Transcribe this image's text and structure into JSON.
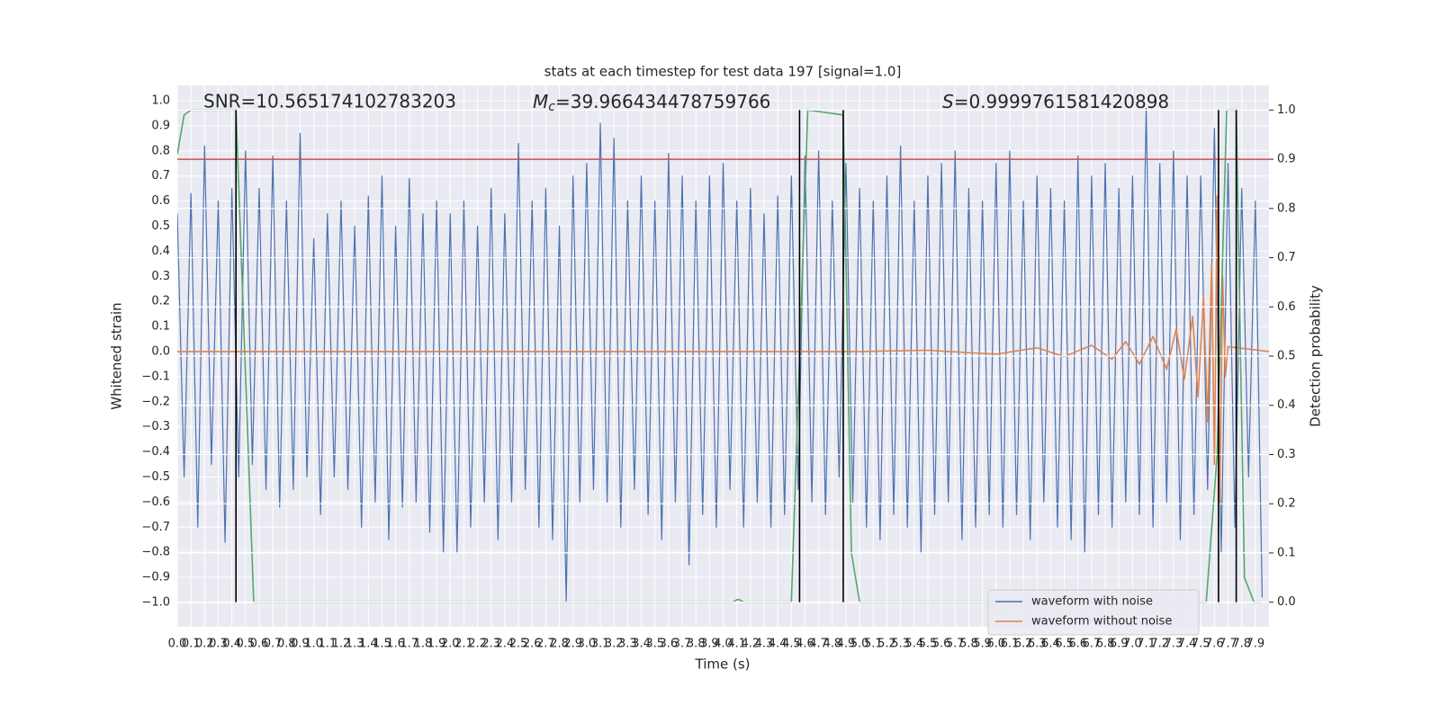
{
  "chart_data": {
    "type": "line",
    "title": "stats at each timestep for test data 197 [signal=1.0]",
    "x_label": "Time (s)",
    "y_label": "Whitened strain",
    "y2_label": "Detection probability",
    "annotations": {
      "snr": "SNR=10.565174102783203",
      "mc_symbol": "M",
      "mc_subscript": "c",
      "mc_text": "=39.966434478759766",
      "s_symbol": "S",
      "s_text": "=0.9999761581420898"
    },
    "xlim": [
      0,
      8
    ],
    "ylim": [
      -1.097,
      1.061
    ],
    "y2lim": [
      -0.05,
      1.05
    ],
    "grid": true,
    "legend": "lower right",
    "xticks": [
      {
        "value": 0,
        "label": "0.0"
      },
      0.1,
      0.2,
      0.3,
      0.4,
      0.5,
      0.6,
      0.7,
      0.8,
      0.9,
      {
        "value": 1,
        "label": "1.0"
      },
      1.1,
      1.2,
      1.3,
      1.4,
      1.5,
      1.6,
      1.7,
      1.8,
      1.9,
      {
        "value": 2,
        "label": "2.0"
      },
      2.1,
      2.2,
      2.3,
      2.4,
      2.5,
      2.6,
      2.7,
      2.8,
      2.9,
      {
        "value": 3,
        "label": "3.0"
      },
      3.1,
      3.2,
      3.3,
      3.4,
      3.5,
      3.6,
      3.7,
      3.8,
      3.9,
      {
        "value": 4,
        "label": "4.0"
      },
      4.1,
      4.2,
      4.3,
      4.4,
      4.5,
      4.6,
      4.7,
      4.8,
      4.9,
      {
        "value": 5,
        "label": "5.0"
      },
      5.1,
      5.2,
      5.3,
      5.4,
      5.5,
      5.6,
      5.7,
      5.8,
      5.9,
      {
        "value": 6,
        "label": "6.0"
      },
      6.1,
      6.2,
      6.3,
      6.4,
      6.5,
      6.6,
      6.7,
      6.8,
      6.9,
      {
        "value": 7,
        "label": "7.0"
      },
      7.1,
      7.2,
      7.3,
      7.4,
      7.5,
      7.6,
      7.7,
      7.8,
      7.9
    ],
    "yticks": [
      {
        "value": -1,
        "label": "−1.0"
      },
      {
        "value": -0.9,
        "label": "−0.9"
      },
      {
        "value": -0.8,
        "label": "−0.8"
      },
      {
        "value": -0.7,
        "label": "−0.7"
      },
      {
        "value": -0.6,
        "label": "−0.6"
      },
      {
        "value": -0.5,
        "label": "−0.5"
      },
      {
        "value": -0.4,
        "label": "−0.4"
      },
      {
        "value": -0.3,
        "label": "−0.3"
      },
      {
        "value": -0.2,
        "label": "−0.2"
      },
      {
        "value": -0.1,
        "label": "−0.1"
      },
      {
        "value": 0,
        "label": "0.0"
      },
      0.1,
      0.2,
      0.3,
      0.4,
      0.5,
      0.6,
      0.7,
      0.8,
      0.9,
      {
        "value": 1,
        "label": "1.0"
      }
    ],
    "y2ticks": [
      {
        "value": 0,
        "label": "0.0"
      },
      0.1,
      0.2,
      0.3,
      0.4,
      0.5,
      0.6,
      0.7,
      0.8,
      0.9,
      {
        "value": 1,
        "label": "1.0"
      }
    ],
    "threshold": 0.9,
    "threshold_color": "#c44e52",
    "vlines": [
      0.43,
      4.56,
      4.88,
      7.63,
      7.76
    ],
    "vline_color": "#000000",
    "series": [
      {
        "name": "waveform with noise",
        "color": "#4c72b0",
        "x": [
          0,
          0.05,
          0.1,
          0.15,
          0.2,
          0.25,
          0.3,
          0.35,
          0.4,
          0.45,
          0.5,
          0.55,
          0.6,
          0.65,
          0.7,
          0.75,
          0.8,
          0.85,
          0.9,
          0.95,
          1,
          1.05,
          1.1,
          1.15,
          1.2,
          1.25,
          1.3,
          1.35,
          1.4,
          1.45,
          1.5,
          1.55,
          1.6,
          1.65,
          1.7,
          1.75,
          1.8,
          1.85,
          1.9,
          1.95,
          2,
          2.05,
          2.1,
          2.15,
          2.2,
          2.25,
          2.3,
          2.35,
          2.4,
          2.45,
          2.5,
          2.55,
          2.6,
          2.65,
          2.7,
          2.75,
          2.8,
          2.85,
          2.9,
          2.95,
          3,
          3.05,
          3.1,
          3.15,
          3.2,
          3.25,
          3.3,
          3.35,
          3.4,
          3.45,
          3.5,
          3.55,
          3.6,
          3.65,
          3.7,
          3.75,
          3.8,
          3.85,
          3.9,
          3.95,
          4,
          4.05,
          4.1,
          4.15,
          4.2,
          4.25,
          4.3,
          4.35,
          4.4,
          4.45,
          4.5,
          4.55,
          4.6,
          4.65,
          4.7,
          4.75,
          4.8,
          4.85,
          4.9,
          4.95,
          5,
          5.05,
          5.1,
          5.15,
          5.2,
          5.25,
          5.3,
          5.35,
          5.4,
          5.45,
          5.5,
          5.55,
          5.6,
          5.65,
          5.7,
          5.75,
          5.8,
          5.85,
          5.9,
          5.95,
          6,
          6.05,
          6.1,
          6.15,
          6.2,
          6.25,
          6.3,
          6.35,
          6.4,
          6.45,
          6.5,
          6.55,
          6.6,
          6.65,
          6.7,
          6.75,
          6.8,
          6.85,
          6.9,
          6.95,
          7,
          7.05,
          7.1,
          7.15,
          7.2,
          7.25,
          7.3,
          7.35,
          7.4,
          7.45,
          7.5,
          7.55,
          7.6,
          7.65,
          7.7,
          7.75,
          7.8,
          7.85,
          7.9,
          7.95
        ],
        "values": [
          0.55,
          -0.5,
          0.63,
          -0.7,
          0.82,
          -0.45,
          0.6,
          -0.76,
          0.65,
          -0.5,
          0.8,
          -0.45,
          0.65,
          -0.55,
          0.78,
          -0.62,
          0.6,
          -0.55,
          0.87,
          -0.5,
          0.45,
          -0.65,
          0.55,
          -0.5,
          0.6,
          -0.55,
          0.5,
          -0.7,
          0.62,
          -0.6,
          0.7,
          -0.75,
          0.5,
          -0.62,
          0.69,
          -0.6,
          0.55,
          -0.72,
          0.6,
          -0.8,
          0.55,
          -0.8,
          0.6,
          -0.7,
          0.5,
          -0.6,
          0.65,
          -0.75,
          0.55,
          -0.6,
          0.83,
          -0.55,
          0.6,
          -0.7,
          0.65,
          -0.75,
          0.5,
          -1.0,
          0.7,
          -0.6,
          0.75,
          -0.55,
          0.91,
          -0.6,
          0.85,
          -0.7,
          0.6,
          -0.55,
          0.7,
          -0.65,
          0.6,
          -0.75,
          0.79,
          -0.6,
          0.7,
          -0.85,
          0.6,
          -0.65,
          0.7,
          -0.7,
          0.75,
          -0.55,
          0.6,
          -0.7,
          0.65,
          -0.6,
          0.55,
          -0.7,
          0.62,
          -0.65,
          0.7,
          -0.55,
          0.78,
          -0.6,
          0.8,
          -0.65,
          0.6,
          -0.5,
          0.75,
          -0.6,
          0.65,
          -0.7,
          0.6,
          -0.75,
          0.7,
          -0.65,
          0.82,
          -0.7,
          0.6,
          -0.8,
          0.7,
          -0.65,
          0.75,
          -0.6,
          0.8,
          -0.75,
          0.65,
          -0.7,
          0.6,
          -0.65,
          0.75,
          -0.7,
          0.8,
          -0.65,
          0.6,
          -0.75,
          0.7,
          -0.6,
          0.65,
          -0.7,
          0.6,
          -0.75,
          0.78,
          -0.8,
          0.7,
          -0.65,
          0.75,
          -0.7,
          0.65,
          -0.6,
          0.7,
          -0.65,
          0.97,
          -0.7,
          0.75,
          -0.6,
          0.8,
          -0.75,
          0.7,
          -0.65,
          0.7,
          -0.55,
          0.89,
          -0.8,
          0.75,
          -0.7,
          0.65,
          -0.5,
          0.6,
          -0.98
        ]
      },
      {
        "name": "waveform without noise",
        "color": "#dd8452",
        "x": [
          0,
          1,
          2,
          3,
          4,
          5,
          5.5,
          6.0,
          6.3,
          6.5,
          6.7,
          6.85,
          6.95,
          7.05,
          7.15,
          7.25,
          7.32,
          7.38,
          7.44,
          7.48,
          7.52,
          7.55,
          7.58,
          7.6,
          7.62,
          7.64,
          7.66,
          7.68,
          7.7,
          8.0
        ],
        "values": [
          0,
          0,
          0,
          0,
          0,
          0,
          0.005,
          -0.01,
          0.015,
          -0.02,
          0.025,
          -0.03,
          0.04,
          -0.05,
          0.06,
          -0.07,
          0.09,
          -0.11,
          0.14,
          -0.18,
          0.22,
          -0.28,
          0.35,
          -0.45,
          0.62,
          -0.6,
          0.3,
          -0.1,
          0.02,
          0
        ]
      },
      {
        "color": "#55a868",
        "axis": "y2",
        "x": [
          0,
          0.05,
          0.1,
          0.43,
          0.56,
          4.07,
          4.1,
          4.12,
          4.15,
          4.5,
          4.62,
          4.88,
          4.94,
          5.0,
          7.54,
          7.62,
          7.69,
          7.76,
          7.82,
          7.89,
          7.94
        ],
        "values": [
          0.91,
          0.99,
          1.0,
          1.0,
          0,
          0,
          0.005,
          0.005,
          0,
          0,
          1.0,
          0.99,
          0.1,
          0,
          0,
          0.3,
          1.0,
          1.0,
          0.05,
          0,
          0
        ]
      }
    ]
  }
}
